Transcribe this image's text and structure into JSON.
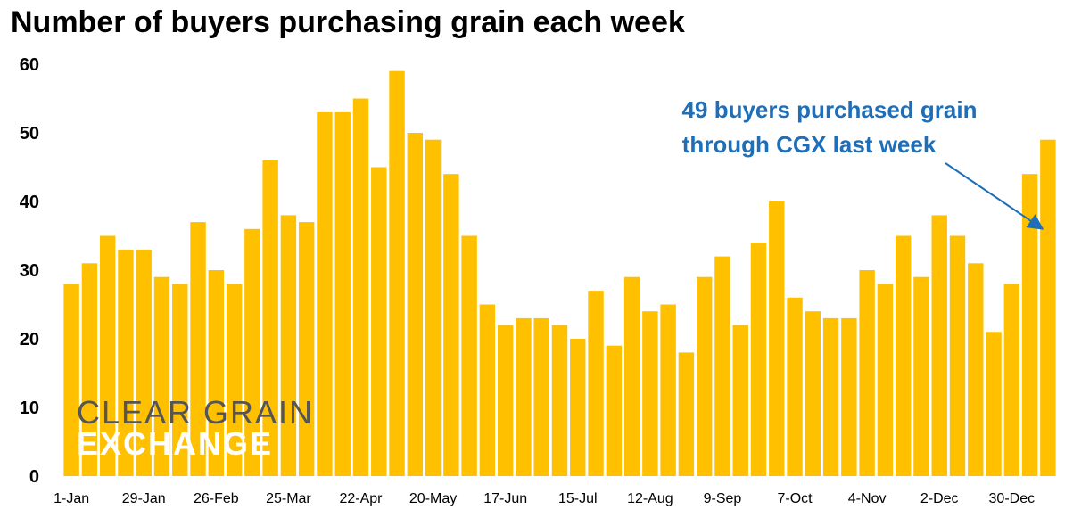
{
  "chart_data": {
    "type": "bar",
    "title": "Number of buyers purchasing grain each week",
    "xlabel": "",
    "ylabel": "",
    "ylim": [
      0,
      60
    ],
    "yticks": [
      0,
      10,
      20,
      30,
      40,
      50,
      60
    ],
    "grid": false,
    "bar_color": "#FFC000",
    "tick_labels": [
      {
        "index": 0,
        "label": "1-Jan"
      },
      {
        "index": 4,
        "label": "29-Jan"
      },
      {
        "index": 8,
        "label": "26-Feb"
      },
      {
        "index": 12,
        "label": "25-Mar"
      },
      {
        "index": 16,
        "label": "22-Apr"
      },
      {
        "index": 20,
        "label": "20-May"
      },
      {
        "index": 24,
        "label": "17-Jun"
      },
      {
        "index": 28,
        "label": "15-Jul"
      },
      {
        "index": 32,
        "label": "12-Aug"
      },
      {
        "index": 36,
        "label": "9-Sep"
      },
      {
        "index": 40,
        "label": "7-Oct"
      },
      {
        "index": 44,
        "label": "4-Nov"
      },
      {
        "index": 48,
        "label": "2-Dec"
      },
      {
        "index": 52,
        "label": "30-Dec"
      }
    ],
    "values": [
      28,
      31,
      35,
      33,
      33,
      29,
      28,
      37,
      30,
      28,
      36,
      46,
      38,
      37,
      53,
      53,
      55,
      45,
      59,
      50,
      49,
      44,
      35,
      25,
      22,
      23,
      23,
      22,
      20,
      27,
      19,
      29,
      24,
      25,
      18,
      29,
      32,
      22,
      34,
      40,
      26,
      24,
      23,
      23,
      30,
      28,
      35,
      29,
      38,
      35,
      31,
      21,
      28,
      44,
      49
    ],
    "annotation": {
      "lines": [
        "49 buyers purchased grain",
        "through CGX last week"
      ],
      "color": "#1F6FB8",
      "points_to_index": 54
    }
  },
  "logo": {
    "line1": "CLEAR GRAIN",
    "line2": "EXCHANGE"
  }
}
